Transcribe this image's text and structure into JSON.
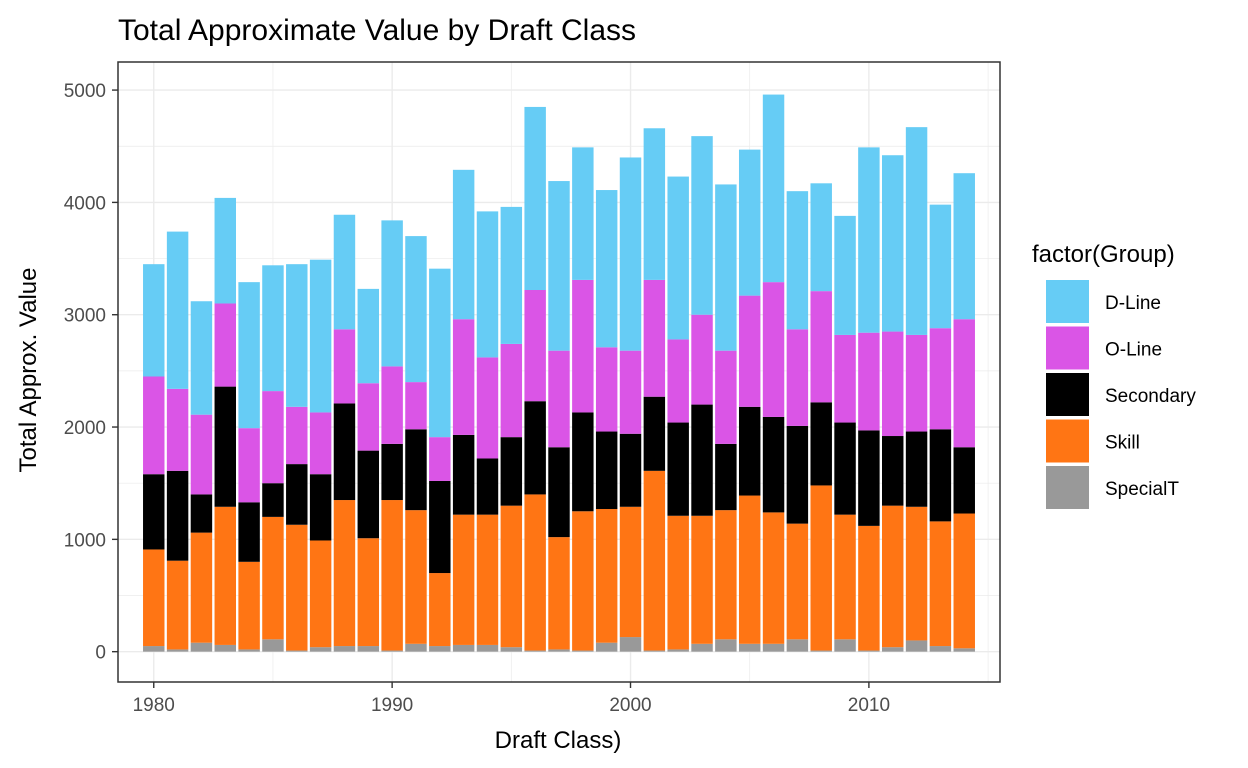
{
  "chart_data": {
    "type": "bar",
    "stacked": true,
    "title": "Total Approximate Value by Draft Class",
    "xlabel": "Draft Class)",
    "ylabel": "Total Approx. Value",
    "xlim": [
      1978.5,
      1981.5
    ],
    "ylim": [
      -270,
      5250
    ],
    "x_ticks": [
      1980,
      1990,
      2000,
      2010
    ],
    "y_ticks": [
      0,
      1000,
      2000,
      3000,
      4000,
      5000
    ],
    "grid": true,
    "legend_title": "factor(Group)",
    "legend_position": "right",
    "x": [
      1980,
      1981,
      1982,
      1983,
      1984,
      1985,
      1986,
      1987,
      1988,
      1989,
      1990,
      1991,
      1992,
      1993,
      1994,
      1995,
      1996,
      1997,
      1998,
      1999,
      2000,
      2001,
      2002,
      2003,
      2004,
      2005,
      2006,
      2007,
      2008,
      2009,
      2010,
      2011,
      2012,
      2013,
      2014
    ],
    "series": [
      {
        "name": "SpecialT",
        "color": "#999999",
        "values": [
          50,
          20,
          80,
          60,
          20,
          110,
          10,
          40,
          50,
          50,
          10,
          70,
          50,
          60,
          60,
          40,
          10,
          20,
          10,
          80,
          130,
          10,
          20,
          70,
          110,
          70,
          70,
          110,
          10,
          110,
          10,
          40,
          100,
          50,
          30
        ]
      },
      {
        "name": "Skill",
        "color": "#ff7514",
        "values": [
          860,
          790,
          980,
          1230,
          780,
          1090,
          1120,
          950,
          1300,
          960,
          1340,
          1190,
          650,
          1160,
          1160,
          1260,
          1390,
          1000,
          1240,
          1190,
          1160,
          1600,
          1190,
          1140,
          1150,
          1320,
          1170,
          1030,
          1470,
          1110,
          1110,
          1260,
          1190,
          1110,
          1200
        ]
      },
      {
        "name": "Secondary",
        "color": "#000000",
        "values": [
          670,
          800,
          340,
          1070,
          530,
          300,
          540,
          590,
          860,
          780,
          500,
          720,
          820,
          710,
          500,
          610,
          830,
          800,
          880,
          690,
          650,
          660,
          830,
          990,
          590,
          790,
          850,
          870,
          740,
          820,
          850,
          620,
          670,
          820,
          590
        ]
      },
      {
        "name": "O-Line",
        "color": "#da55e6",
        "values": [
          870,
          730,
          710,
          740,
          660,
          820,
          510,
          550,
          660,
          600,
          690,
          420,
          390,
          1030,
          900,
          830,
          990,
          860,
          1180,
          750,
          740,
          1040,
          740,
          800,
          830,
          990,
          1200,
          860,
          990,
          780,
          870,
          930,
          860,
          900,
          1140
        ]
      },
      {
        "name": "D-Line",
        "color": "#66ccf5",
        "values": [
          1000,
          1400,
          1010,
          940,
          1300,
          1120,
          1270,
          1360,
          1020,
          840,
          1300,
          1300,
          1500,
          1330,
          1300,
          1220,
          1630,
          1510,
          1180,
          1400,
          1720,
          1350,
          1450,
          1590,
          1480,
          1300,
          1670,
          1230,
          960,
          1060,
          1650,
          1570,
          1850,
          1100,
          1300
        ]
      }
    ],
    "legend_order": [
      "D-Line",
      "O-Line",
      "Secondary",
      "Skill",
      "SpecialT"
    ]
  }
}
